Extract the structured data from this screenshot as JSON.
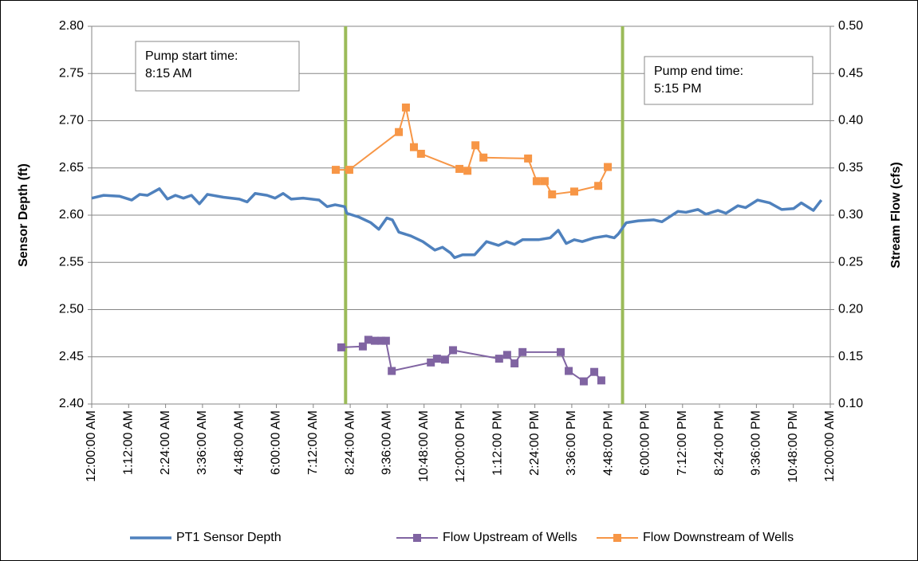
{
  "chart_data": {
    "type": "line",
    "ylabel": "Sensor Depth (ft)",
    "y2label": "Stream Flow (cfs)",
    "xlim": [
      0,
      24
    ],
    "xticks": [
      {
        "value": 0,
        "label": "12:00:00 AM"
      },
      {
        "value": 1.2,
        "label": "1:12:00 AM"
      },
      {
        "value": 2.4,
        "label": "2:24:00 AM"
      },
      {
        "value": 3.6,
        "label": "3:36:00 AM"
      },
      {
        "value": 4.8,
        "label": "4:48:00 AM"
      },
      {
        "value": 6,
        "label": "6:00:00 AM"
      },
      {
        "value": 7.2,
        "label": "7:12:00 AM"
      },
      {
        "value": 8.4,
        "label": "8:24:00 AM"
      },
      {
        "value": 9.6,
        "label": "9:36:00 AM"
      },
      {
        "value": 10.8,
        "label": "10:48:00 AM"
      },
      {
        "value": 12,
        "label": "12:00:00 PM"
      },
      {
        "value": 13.2,
        "label": "1:12:00 PM"
      },
      {
        "value": 14.4,
        "label": "2:24:00 PM"
      },
      {
        "value": 15.6,
        "label": "3:36:00 PM"
      },
      {
        "value": 16.8,
        "label": "4:48:00 PM"
      },
      {
        "value": 18,
        "label": "6:00:00 PM"
      },
      {
        "value": 19.2,
        "label": "7:12:00 PM"
      },
      {
        "value": 20.4,
        "label": "8:24:00 PM"
      },
      {
        "value": 21.6,
        "label": "9:36:00 PM"
      },
      {
        "value": 22.8,
        "label": "10:48:00 PM"
      },
      {
        "value": 24,
        "label": "12:00:00 AM"
      }
    ],
    "ylim": [
      2.4,
      2.8
    ],
    "yticks": [
      {
        "value": 2.4,
        "label": "2.40"
      },
      {
        "value": 2.45,
        "label": "2.45"
      },
      {
        "value": 2.5,
        "label": "2.50"
      },
      {
        "value": 2.55,
        "label": "2.55"
      },
      {
        "value": 2.6,
        "label": "2.60"
      },
      {
        "value": 2.65,
        "label": "2.65"
      },
      {
        "value": 2.7,
        "label": "2.70"
      },
      {
        "value": 2.75,
        "label": "2.75"
      },
      {
        "value": 2.8,
        "label": "2.80"
      }
    ],
    "y2lim": [
      0.1,
      0.5
    ],
    "y2ticks": [
      {
        "value": 0.1,
        "label": "0.10"
      },
      {
        "value": 0.15,
        "label": "0.15"
      },
      {
        "value": 0.2,
        "label": "0.20"
      },
      {
        "value": 0.25,
        "label": "0.25"
      },
      {
        "value": 0.3,
        "label": "0.30"
      },
      {
        "value": 0.35,
        "label": "0.35"
      },
      {
        "value": 0.4,
        "label": "0.40"
      },
      {
        "value": 0.45,
        "label": "0.45"
      },
      {
        "value": 0.5,
        "label": "0.50"
      }
    ],
    "grid": true,
    "legend": "bottom",
    "vlines": {
      "color": "#9bbb59",
      "x": [
        8.25,
        17.25
      ]
    },
    "annotations": [
      {
        "lines": [
          "Pump start time:",
          "8:15 AM"
        ]
      },
      {
        "lines": [
          "Pump end time:",
          "5:15 PM"
        ]
      }
    ],
    "series": [
      {
        "name": "PT1 Sensor Depth",
        "color": "#4f81bd",
        "axis": "y",
        "marker": "none",
        "x": [
          0,
          0.39,
          0.91,
          1.3,
          1.56,
          1.81,
          2.2,
          2.46,
          2.72,
          2.98,
          3.24,
          3.5,
          3.76,
          4.28,
          4.8,
          5.05,
          5.31,
          5.7,
          5.96,
          6.22,
          6.48,
          6.87,
          7.39,
          7.65,
          7.91,
          8.22,
          8.29,
          8.68,
          9.07,
          9.33,
          9.59,
          9.77,
          9.98,
          10.37,
          10.76,
          11.15,
          11.4,
          11.66,
          11.79,
          12.05,
          12.44,
          12.83,
          13.22,
          13.48,
          13.74,
          14,
          14.52,
          14.9,
          15.16,
          15.42,
          15.68,
          15.94,
          16.33,
          16.72,
          16.98,
          17.11,
          17.37,
          17.76,
          18.27,
          18.53,
          19.05,
          19.31,
          19.7,
          19.96,
          20.35,
          20.61,
          21,
          21.25,
          21.64,
          22.03,
          22.42,
          22.81,
          23.06,
          23.45,
          23.71
        ],
        "values": [
          2.618,
          2.621,
          2.62,
          2.616,
          2.622,
          2.621,
          2.628,
          2.617,
          2.621,
          2.618,
          2.621,
          2.612,
          2.622,
          2.619,
          2.617,
          2.614,
          2.623,
          2.621,
          2.618,
          2.623,
          2.617,
          2.618,
          2.616,
          2.609,
          2.611,
          2.609,
          2.602,
          2.598,
          2.592,
          2.585,
          2.597,
          2.595,
          2.582,
          2.578,
          2.572,
          2.563,
          2.566,
          2.56,
          2.555,
          2.558,
          2.558,
          2.572,
          2.568,
          2.572,
          2.569,
          2.574,
          2.574,
          2.576,
          2.584,
          2.57,
          2.574,
          2.572,
          2.576,
          2.578,
          2.576,
          2.58,
          2.592,
          2.594,
          2.595,
          2.593,
          2.604,
          2.603,
          2.606,
          2.601,
          2.605,
          2.602,
          2.61,
          2.608,
          2.616,
          2.613,
          2.606,
          2.607,
          2.613,
          2.605,
          2.616
        ]
      },
      {
        "name": "Flow Upstream of Wells",
        "color": "#8064a2",
        "axis": "y2",
        "marker": "square",
        "x": [
          8.11,
          8.81,
          8.99,
          9.2,
          9.41,
          9.56,
          9.75,
          11.02,
          11.22,
          11.48,
          11.74,
          13.24,
          13.5,
          13.74,
          14,
          15.24,
          15.5,
          15.99,
          16.33,
          16.56
        ],
        "values": [
          0.16,
          0.161,
          0.168,
          0.167,
          0.167,
          0.167,
          0.135,
          0.144,
          0.148,
          0.147,
          0.157,
          0.148,
          0.152,
          0.143,
          0.155,
          0.155,
          0.135,
          0.124,
          0.134,
          0.125
        ]
      },
      {
        "name": "Flow Downstream of Wells",
        "color": "#f79646",
        "axis": "y2",
        "marker": "square",
        "x": [
          7.93,
          8.37,
          9.98,
          10.21,
          10.47,
          10.7,
          11.95,
          12.21,
          12.47,
          12.73,
          14.18,
          14.46,
          14.72,
          14.96,
          15.68,
          16.46,
          16.77
        ],
        "values": [
          0.348,
          0.348,
          0.388,
          0.414,
          0.372,
          0.365,
          0.349,
          0.347,
          0.374,
          0.361,
          0.36,
          0.336,
          0.336,
          0.322,
          0.325,
          0.331,
          0.351
        ]
      }
    ]
  }
}
